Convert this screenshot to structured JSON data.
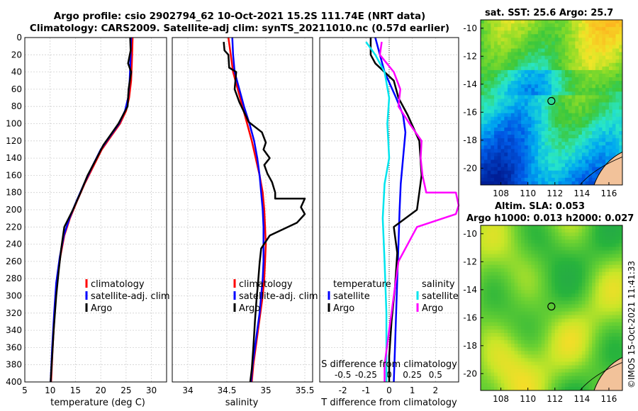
{
  "header": {
    "line1": "Argo profile: csio 2902794_62 10-Oct-2021 15.2S 111.74E (NRT data)",
    "line2": "Climatology: CARS2009. Satellite-adj clim: synTS_20211010.nc (0.57d earlier)"
  },
  "colors": {
    "climatology": "#ff0000",
    "satellite": "#0000ff",
    "argo": "#000000",
    "s_satellite": "#00e5ee",
    "s_argo": "#ff00ff"
  },
  "chart_data": [
    {
      "type": "line",
      "name": "temperature-profile",
      "xlabel": "temperature (deg C)",
      "xlim": [
        5,
        33
      ],
      "ylim": [
        0,
        400
      ],
      "y_reversed": true,
      "xticks": [
        5,
        10,
        15,
        20,
        25,
        30
      ],
      "yticks": [
        0,
        20,
        40,
        60,
        80,
        100,
        120,
        140,
        160,
        180,
        200,
        220,
        240,
        260,
        280,
        300,
        320,
        340,
        360,
        380,
        400
      ],
      "legend": [
        "climatology",
        "satellite-adj. clim",
        "Argo"
      ],
      "series": [
        {
          "name": "climatology",
          "color": "#ff0000",
          "points": [
            [
              26.3,
              0
            ],
            [
              26.2,
              20
            ],
            [
              26.0,
              50
            ],
            [
              25.6,
              70
            ],
            [
              25.0,
              85
            ],
            [
              23.8,
              100
            ],
            [
              22.0,
              115
            ],
            [
              20.2,
              130
            ],
            [
              18.5,
              150
            ],
            [
              16.8,
              170
            ],
            [
              15.3,
              190
            ],
            [
              13.9,
              210
            ],
            [
              12.8,
              230
            ],
            [
              12.0,
              255
            ],
            [
              11.3,
              285
            ],
            [
              10.9,
              320
            ],
            [
              10.5,
              360
            ],
            [
              10.2,
              400
            ]
          ]
        },
        {
          "name": "satellite-adj. clim",
          "points": [
            [
              26.0,
              0
            ],
            [
              25.9,
              20
            ],
            [
              25.7,
              50
            ],
            [
              25.4,
              70
            ],
            [
              24.8,
              85
            ],
            [
              23.6,
              100
            ],
            [
              21.8,
              115
            ],
            [
              20.0,
              130
            ],
            [
              18.3,
              150
            ],
            [
              16.7,
              170
            ],
            [
              15.2,
              190
            ],
            [
              13.8,
              210
            ],
            [
              12.7,
              230
            ],
            [
              11.9,
              255
            ],
            [
              11.2,
              285
            ],
            [
              10.8,
              320
            ],
            [
              10.4,
              360
            ],
            [
              10.1,
              400
            ]
          ]
        },
        {
          "name": "Argo",
          "points": [
            [
              25.8,
              0
            ],
            [
              25.9,
              15
            ],
            [
              25.4,
              30
            ],
            [
              26.0,
              40
            ],
            [
              25.5,
              60
            ],
            [
              25.3,
              80
            ],
            [
              23.5,
              100
            ],
            [
              21.7,
              115
            ],
            [
              20.5,
              125
            ],
            [
              19.2,
              140
            ],
            [
              17.4,
              160
            ],
            [
              16.0,
              180
            ],
            [
              14.5,
              200
            ],
            [
              12.8,
              220
            ],
            [
              12.2,
              245
            ],
            [
              11.7,
              270
            ],
            [
              11.2,
              300
            ],
            [
              10.7,
              340
            ],
            [
              10.4,
              370
            ],
            [
              10.1,
              400
            ]
          ]
        }
      ]
    },
    {
      "type": "line",
      "name": "salinity-profile",
      "xlabel": "salinity",
      "xlim": [
        33.8,
        35.6
      ],
      "ylim": [
        0,
        400
      ],
      "y_reversed": true,
      "xticks": [
        34,
        34.5,
        35,
        35.5
      ],
      "legend": [
        "climatology",
        "satellite-adj. clim",
        "Argo"
      ],
      "series": [
        {
          "name": "climatology",
          "points": [
            [
              34.52,
              0
            ],
            [
              34.55,
              20
            ],
            [
              34.58,
              40
            ],
            [
              34.64,
              60
            ],
            [
              34.7,
              80
            ],
            [
              34.76,
              100
            ],
            [
              34.82,
              120
            ],
            [
              34.87,
              140
            ],
            [
              34.92,
              160
            ],
            [
              34.96,
              180
            ],
            [
              34.98,
              200
            ],
            [
              34.99,
              220
            ],
            [
              35.0,
              240
            ],
            [
              34.99,
              260
            ],
            [
              34.98,
              280
            ],
            [
              34.96,
              300
            ],
            [
              34.93,
              320
            ],
            [
              34.9,
              340
            ],
            [
              34.87,
              360
            ],
            [
              34.84,
              380
            ],
            [
              34.82,
              400
            ]
          ]
        },
        {
          "name": "satellite-adj. clim",
          "points": [
            [
              34.57,
              0
            ],
            [
              34.58,
              20
            ],
            [
              34.6,
              40
            ],
            [
              34.66,
              60
            ],
            [
              34.72,
              80
            ],
            [
              34.79,
              100
            ],
            [
              34.85,
              120
            ],
            [
              34.89,
              140
            ],
            [
              34.92,
              160
            ],
            [
              34.94,
              180
            ],
            [
              34.96,
              200
            ],
            [
              34.97,
              220
            ],
            [
              34.97,
              240
            ],
            [
              34.97,
              260
            ],
            [
              34.96,
              280
            ],
            [
              34.94,
              300
            ],
            [
              34.92,
              320
            ],
            [
              34.89,
              340
            ],
            [
              34.86,
              360
            ],
            [
              34.83,
              380
            ],
            [
              34.81,
              400
            ]
          ]
        },
        {
          "name": "Argo",
          "points": [
            [
              34.46,
              5
            ],
            [
              34.47,
              15
            ],
            [
              34.52,
              20
            ],
            [
              34.53,
              35
            ],
            [
              34.62,
              40
            ],
            [
              34.6,
              60
            ],
            [
              34.66,
              75
            ],
            [
              34.74,
              90
            ],
            [
              34.78,
              98
            ],
            [
              34.95,
              110
            ],
            [
              35.0,
              122
            ],
            [
              34.97,
              130
            ],
            [
              35.05,
              140
            ],
            [
              34.98,
              148
            ],
            [
              35.02,
              158
            ],
            [
              35.08,
              168
            ],
            [
              35.12,
              180
            ],
            [
              35.12,
              187
            ],
            [
              35.5,
              187
            ],
            [
              35.45,
              197
            ],
            [
              35.5,
              205
            ],
            [
              35.4,
              215
            ],
            [
              35.05,
              230
            ],
            [
              34.94,
              245
            ],
            [
              34.92,
              262
            ],
            [
              34.9,
              285
            ],
            [
              34.88,
              305
            ],
            [
              34.86,
              330
            ],
            [
              34.84,
              360
            ],
            [
              34.82,
              385
            ],
            [
              34.8,
              400
            ]
          ]
        }
      ]
    },
    {
      "type": "line",
      "name": "difference-profile",
      "xlabel": "T difference from climatology",
      "xlabel_top": "S difference from climatology",
      "xlim": [
        -3,
        3
      ],
      "ylim": [
        0,
        400
      ],
      "y_reversed": true,
      "xticks": [
        -2,
        -1,
        0,
        1,
        2
      ],
      "sticks": [
        -0.5,
        -0.25,
        0,
        0.25,
        0.5
      ],
      "sticklabels": [
        "-0.5",
        "-0.25",
        "0",
        "0.25",
        "0.5"
      ],
      "legend_left_title": "temperature",
      "legend_right_title": "salinity",
      "legend": [
        "satellite",
        "Argo",
        "satellite",
        "Argo"
      ],
      "series": [
        {
          "name": "T satellite",
          "points": [
            [
              -0.6,
              0
            ],
            [
              -0.4,
              20
            ],
            [
              -0.2,
              40
            ],
            [
              0.3,
              70
            ],
            [
              0.6,
              90
            ],
            [
              0.7,
              110
            ],
            [
              0.6,
              140
            ],
            [
              0.5,
              170
            ],
            [
              0.45,
              200
            ],
            [
              0.4,
              240
            ],
            [
              0.35,
              280
            ],
            [
              0.3,
              320
            ],
            [
              0.25,
              360
            ],
            [
              0.2,
              400
            ]
          ]
        },
        {
          "name": "T Argo",
          "points": [
            [
              -0.8,
              0
            ],
            [
              -0.8,
              20
            ],
            [
              -0.6,
              30
            ],
            [
              0.2,
              50
            ],
            [
              0.4,
              70
            ],
            [
              0.8,
              90
            ],
            [
              1.3,
              120
            ],
            [
              1.4,
              160
            ],
            [
              1.3,
              180
            ],
            [
              1.2,
              200
            ],
            [
              0.2,
              220
            ],
            [
              0.35,
              250
            ],
            [
              0.25,
              290
            ],
            [
              0.1,
              330
            ],
            [
              0.0,
              370
            ],
            [
              0.0,
              400
            ]
          ]
        },
        {
          "name": "S satellite",
          "points": [
            [
              -0.25,
              5
            ],
            [
              -0.15,
              20
            ],
            [
              -0.05,
              40
            ],
            [
              0.0,
              70
            ],
            [
              -0.02,
              100
            ],
            [
              0.0,
              140
            ],
            [
              -0.05,
              170
            ],
            [
              -0.07,
              210
            ],
            [
              -0.05,
              260
            ],
            [
              -0.03,
              320
            ],
            [
              -0.03,
              400
            ]
          ]
        },
        {
          "name": "S Argo",
          "points": [
            [
              -0.08,
              5
            ],
            [
              -0.1,
              20
            ],
            [
              0.05,
              40
            ],
            [
              0.12,
              60
            ],
            [
              0.1,
              80
            ],
            [
              0.22,
              100
            ],
            [
              0.35,
              120
            ],
            [
              0.34,
              140
            ],
            [
              0.36,
              160
            ],
            [
              0.4,
              180
            ],
            [
              0.72,
              180
            ],
            [
              0.75,
              195
            ],
            [
              0.72,
              205
            ],
            [
              0.3,
              220
            ],
            [
              0.1,
              260
            ],
            [
              0.05,
              300
            ],
            [
              0.0,
              340
            ],
            [
              -0.05,
              380
            ],
            [
              -0.05,
              400
            ]
          ]
        }
      ]
    }
  ],
  "maps": [
    {
      "title": "sat. SST: 25.6 Argo: 25.7",
      "xticks": [
        "108",
        "110",
        "112",
        "114",
        "116"
      ],
      "yticks": [
        "-10",
        "-12",
        "-14",
        "-16",
        "-18",
        "-20"
      ],
      "float_lon": 111.74,
      "float_lat": -15.2
    },
    {
      "title1": "Altim. SLA: 0.053",
      "title2": "Argo h1000: 0.013 h2000: 0.027",
      "xticks": [
        "108",
        "110",
        "112",
        "114",
        "116"
      ],
      "yticks": [
        "-10",
        "-12",
        "-14",
        "-16",
        "-18",
        "-20"
      ],
      "float_lon": 111.74,
      "float_lat": -15.2
    }
  ],
  "credit": "©IMOS 15-Oct-2021 11:41:33"
}
